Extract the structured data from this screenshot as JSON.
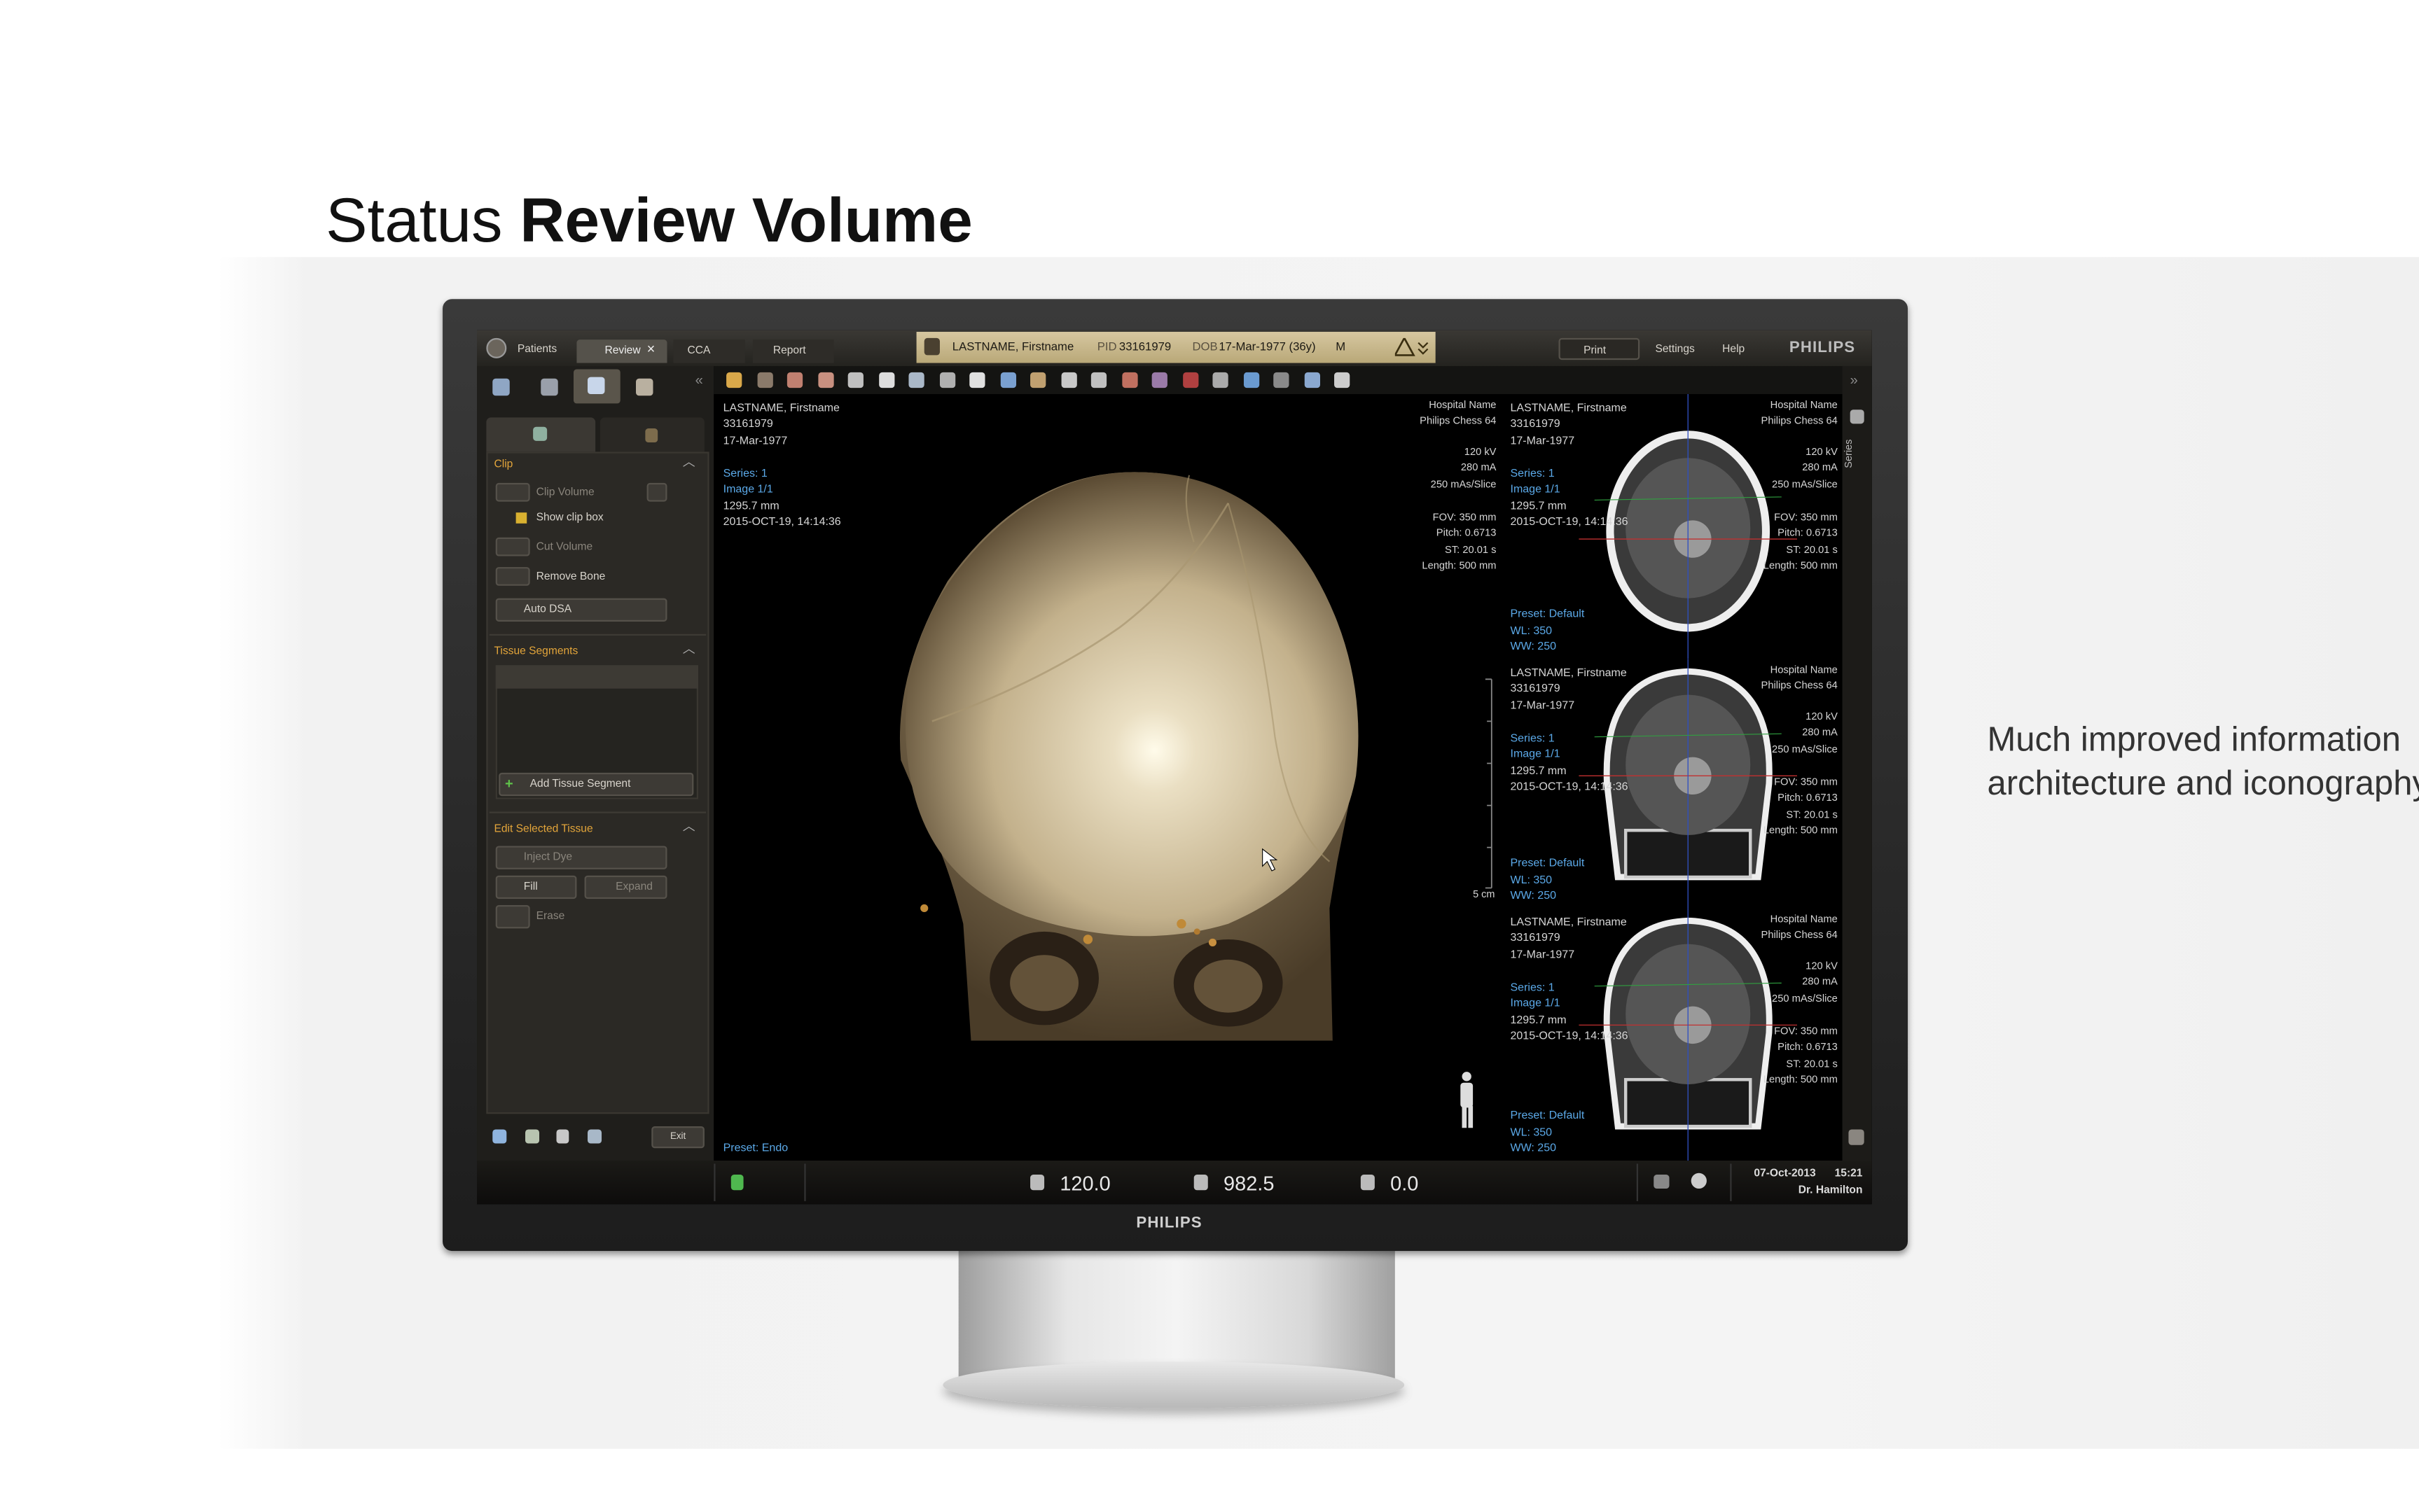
{
  "slide": {
    "title_regular": "Status",
    "title_bold": "Review Volume",
    "note": "Much improved information architecture and iconography",
    "monitor_brand": "PHILIPS"
  },
  "app": {
    "tabs": [
      "Patients",
      "Review",
      "CCA",
      "Report"
    ],
    "patient_bar": {
      "name": "LASTNAME, Firstname",
      "pid_label": "PID",
      "pid": "33161979",
      "dob_label": "DOB",
      "dob": "17-Mar-1977 (36y)",
      "sex": "M"
    },
    "menu": [
      "Print",
      "Settings",
      "Help"
    ],
    "logo": "PHILIPS",
    "side_tab": "Series",
    "left_panel": {
      "clip": {
        "title": "Clip",
        "items": [
          "Clip Volume",
          "Show clip box",
          "Cut Volume",
          "Remove Bone",
          "Auto DSA"
        ]
      },
      "tissue_segments": {
        "title": "Tissue Segments",
        "button": "Add Tissue Segment"
      },
      "edit_tissue": {
        "title": "Edit Selected Tissue",
        "items": [
          "Inject Dye",
          "Fill",
          "Expand",
          "Erase"
        ]
      },
      "exit": "Exit"
    },
    "main_view": {
      "patient": [
        "LASTNAME, Firstname",
        "33161979",
        "17-Mar-1977"
      ],
      "series": [
        "Series: 1",
        "Image 1/1"
      ],
      "info": [
        "1295.7 mm",
        "2015-OCT-19, 14:14:36"
      ],
      "scanner": [
        "Hospital Name",
        "Philips Chess 64"
      ],
      "exposure": [
        "120 kV",
        "280 mA",
        "250 mAs/Slice"
      ],
      "scan": [
        "FOV: 350 mm",
        "Pitch: 0.6713",
        "ST: 20.01 s",
        "Length: 500 mm"
      ],
      "preset": [
        "Preset: Endo"
      ],
      "scale": "5 cm"
    },
    "side_views": [
      {
        "patient": [
          "LASTNAME, Firstname",
          "33161979",
          "17-Mar-1977"
        ],
        "series": [
          "Series: 1",
          "Image 1/1"
        ],
        "info": [
          "1295.7 mm",
          "2015-OCT-19, 14:14:36"
        ],
        "scanner": [
          "Hospital Name",
          "Philips Chess 64"
        ],
        "exposure": [
          "120 kV",
          "280 mA",
          "250 mAs/Slice"
        ],
        "scan": [
          "FOV: 350 mm",
          "Pitch: 0.6713",
          "ST: 20.01 s",
          "Length: 500 mm"
        ],
        "preset": [
          "Preset: Default",
          "WL: 350",
          "WW: 250"
        ]
      },
      {
        "patient": [
          "LASTNAME, Firstname",
          "33161979",
          "17-Mar-1977"
        ],
        "series": [
          "Series: 1",
          "Image 1/1"
        ],
        "info": [
          "1295.7 mm",
          "2015-OCT-19, 14:14:36"
        ],
        "scanner": [
          "Hospital Name",
          "Philips Chess 64"
        ],
        "exposure": [
          "120 kV",
          "280 mA",
          "250 mAs/Slice"
        ],
        "scan": [
          "FOV: 350 mm",
          "Pitch: 0.6713",
          "ST: 20.01 s",
          "Length: 500 mm"
        ],
        "preset": [
          "Preset: Default",
          "WL: 350",
          "WW: 250"
        ]
      },
      {
        "patient": [
          "LASTNAME, Firstname",
          "33161979",
          "17-Mar-1977"
        ],
        "series": [
          "Series: 1",
          "Image 1/1"
        ],
        "info": [
          "1295.7 mm",
          "2015-OCT-19, 14:14:36"
        ],
        "scanner": [
          "Hospital Name",
          "Philips Chess 64"
        ],
        "exposure": [
          "120 kV",
          "280 mA",
          "250 mAs/Slice"
        ],
        "scan": [
          "FOV: 350 mm",
          "Pitch: 0.6713",
          "ST: 20.01 s",
          "Length: 500 mm"
        ],
        "preset": [
          "Preset: Default",
          "WL: 350",
          "WW: 250"
        ]
      }
    ],
    "status_bar": {
      "readouts": [
        "120.0",
        "982.5",
        "0.0"
      ],
      "date": "07-Oct-2013",
      "time": "15:21",
      "user": "Dr. Hamilton"
    }
  }
}
